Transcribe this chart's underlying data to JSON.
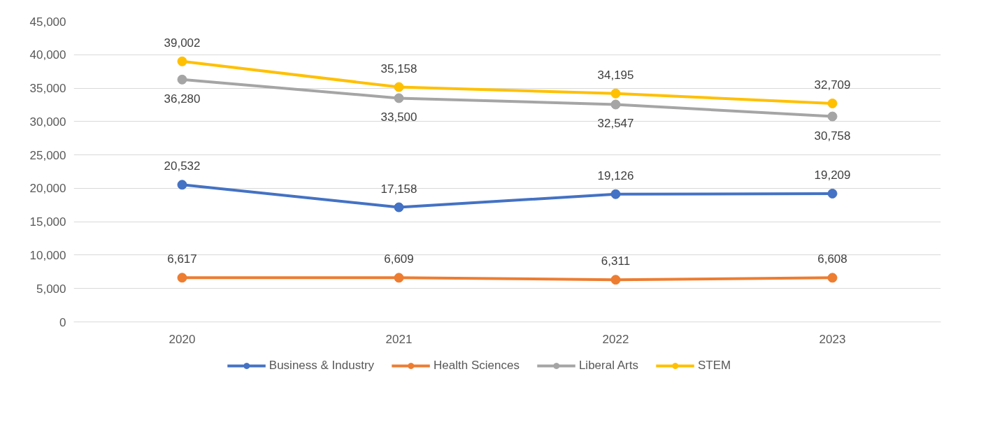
{
  "chart_data": {
    "type": "line",
    "categories": [
      "2020",
      "2021",
      "2022",
      "2023"
    ],
    "series": [
      {
        "name": "Business & Industry",
        "color": "#4472c4",
        "values": [
          20532,
          17158,
          19126,
          19209
        ],
        "value_labels": [
          "20,532",
          "17,158",
          "19,126",
          "19,209"
        ]
      },
      {
        "name": "Health Sciences",
        "color": "#ed7d31",
        "values": [
          6617,
          6609,
          6311,
          6608
        ],
        "value_labels": [
          "6,617",
          "6,609",
          "6,311",
          "6,608"
        ]
      },
      {
        "name": "Liberal Arts",
        "color": "#a5a5a5",
        "values": [
          36280,
          33500,
          32547,
          30758
        ],
        "value_labels": [
          "36,280",
          "33,500",
          "32,547",
          "30,758"
        ]
      },
      {
        "name": "STEM",
        "color": "#ffc000",
        "values": [
          39002,
          35158,
          34195,
          32709
        ],
        "value_labels": [
          "39,002",
          "35,158",
          "34,195",
          "32,709"
        ]
      }
    ],
    "ylim": [
      0,
      45000
    ],
    "yticks": [
      {
        "value": 0,
        "label": "0"
      },
      {
        "value": 5000,
        "label": "5,000"
      },
      {
        "value": 10000,
        "label": "10,000"
      },
      {
        "value": 15000,
        "label": "15,000"
      },
      {
        "value": 20000,
        "label": "20,000"
      },
      {
        "value": 25000,
        "label": "25,000"
      },
      {
        "value": 30000,
        "label": "30,000"
      },
      {
        "value": 35000,
        "label": "35,000"
      },
      {
        "value": 40000,
        "label": "40,000"
      },
      {
        "value": 45000,
        "label": "45,000"
      }
    ],
    "grid": "y",
    "legend": "bottom",
    "marker": "circle",
    "line_style": "solid"
  }
}
